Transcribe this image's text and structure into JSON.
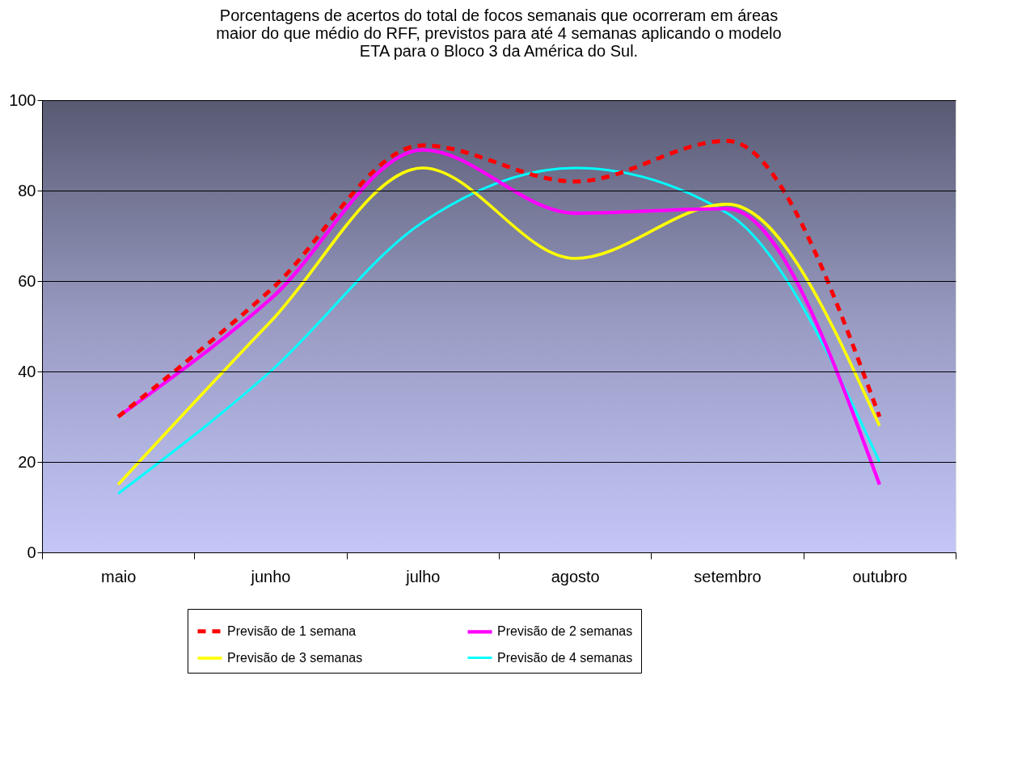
{
  "chart_data": {
    "type": "line",
    "title": [
      "Porcentagens de acertos do total de focos semanais que ocorreram em áreas",
      "maior do que médio do RFF, previstos para até 4 semanas aplicando o modelo",
      "ETA para o Bloco 3 da América do Sul."
    ],
    "categories": [
      "maio",
      "junho",
      "julho",
      "agosto",
      "setembro",
      "outubro"
    ],
    "series": [
      {
        "name": "Previsão de 1 semana",
        "color": "#ff0000",
        "line_style": "dashed",
        "values": [
          30,
          58,
          90,
          82,
          91,
          30
        ]
      },
      {
        "name": "Previsão de 2 semanas",
        "color": "#ff00ff",
        "line_style": "solid",
        "values": [
          30,
          56,
          89,
          75,
          76,
          15
        ]
      },
      {
        "name": "Previsão de 3 semanas",
        "color": "#ffff00",
        "line_style": "solid",
        "values": [
          15,
          51,
          85,
          65,
          77,
          28
        ]
      },
      {
        "name": "Previsão de 4 semanas",
        "color": "#00ffff",
        "line_style": "solid",
        "values": [
          13,
          40,
          73,
          85,
          75,
          20
        ]
      }
    ],
    "ylim": [
      0,
      100
    ],
    "yticks": [
      0,
      20,
      40,
      60,
      80,
      100
    ],
    "grid": "y",
    "legend": "bottom",
    "marker": "none"
  }
}
